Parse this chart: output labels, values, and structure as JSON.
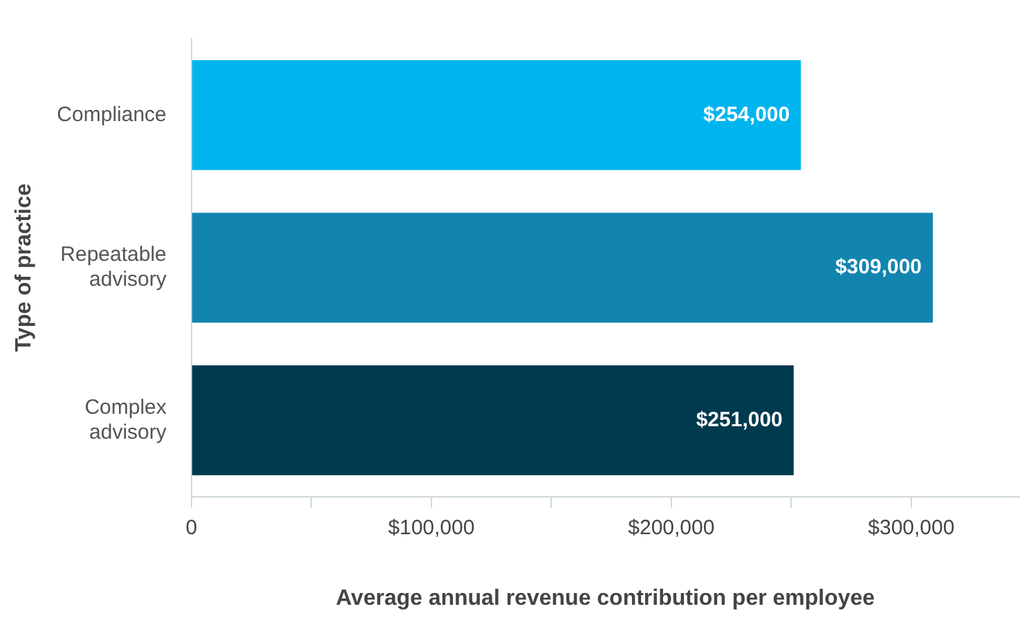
{
  "chart_data": {
    "type": "bar",
    "orientation": "horizontal",
    "xlabel": "Average annual revenue contribution per employee",
    "ylabel": "Type of practice",
    "categories": [
      "Compliance",
      "Repeatable advisory",
      "Complex advisory"
    ],
    "values": [
      254000,
      309000,
      251000
    ],
    "colors": [
      "#00b5ef",
      "#1185b0",
      "#003a4f"
    ],
    "value_labels": [
      "$254,000",
      "$309,000",
      "$251,000"
    ],
    "xlim": [
      0,
      345000
    ],
    "xticks": [
      0,
      {
        "value": 50000,
        "label": null
      },
      {
        "value": 100000,
        "label": "$100,000"
      },
      {
        "value": 150000,
        "label": null
      },
      {
        "value": 200000,
        "label": "$200,000"
      },
      {
        "value": 250000,
        "label": null
      },
      {
        "value": 300000,
        "label": "$300,000"
      }
    ],
    "grid": false,
    "legend": false
  }
}
